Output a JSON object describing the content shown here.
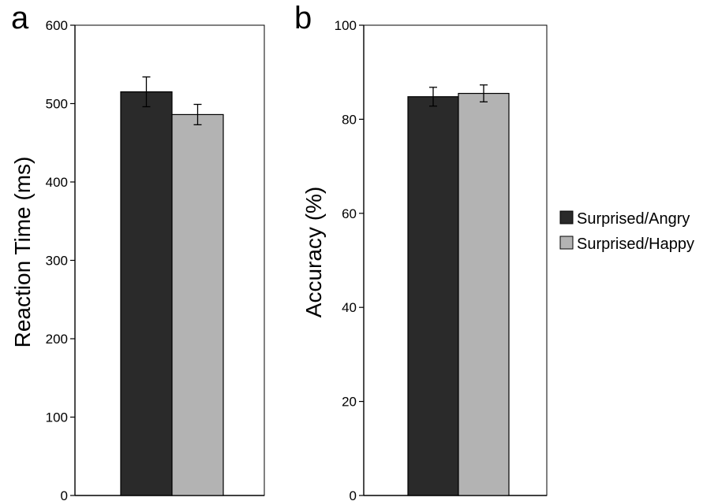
{
  "chart_data": [
    {
      "type": "bar",
      "panel": "a",
      "categories": [
        ""
      ],
      "ylabel": "Reaction Time (ms)",
      "ylim": [
        0,
        600
      ],
      "yticks": [
        0,
        100,
        200,
        300,
        400,
        500,
        600
      ],
      "series": [
        {
          "name": "Surprised/Angry",
          "values": [
            515
          ],
          "error": [
            19
          ],
          "color": "#2a2a2a"
        },
        {
          "name": "Surprised/Happy",
          "values": [
            486
          ],
          "error": [
            13
          ],
          "color": "#b3b3b3"
        }
      ]
    },
    {
      "type": "bar",
      "panel": "b",
      "categories": [
        ""
      ],
      "ylabel": "Accuracy (%)",
      "ylim": [
        0,
        100
      ],
      "yticks": [
        0,
        20,
        40,
        60,
        80,
        100
      ],
      "series": [
        {
          "name": "Surprised/Angry",
          "values": [
            84.8
          ],
          "error": [
            2
          ],
          "color": "#2a2a2a"
        },
        {
          "name": "Surprised/Happy",
          "values": [
            85.5
          ],
          "error": [
            1.8
          ],
          "color": "#b3b3b3"
        }
      ]
    }
  ],
  "legend": {
    "placement": "right",
    "items": [
      {
        "label": "Surprised/Angry",
        "color": "#2a2a2a"
      },
      {
        "label": "Surprised/Happy",
        "color": "#b3b3b3"
      }
    ]
  }
}
